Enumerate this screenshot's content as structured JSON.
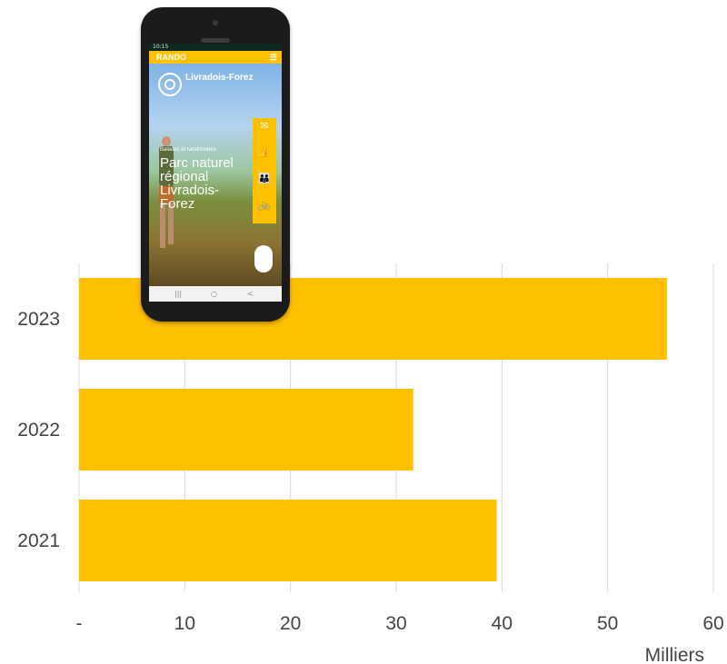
{
  "chart_data": {
    "type": "bar",
    "orientation": "horizontal",
    "categories": [
      "2023",
      "2022",
      "2021"
    ],
    "values": [
      55.6,
      31.6,
      39.5
    ],
    "xlim": [
      0,
      60
    ],
    "xticks": [
      0,
      10,
      20,
      30,
      40,
      50,
      60
    ],
    "xtick_labels": [
      "-",
      "10",
      "20",
      "30",
      "40",
      "50",
      "60"
    ],
    "unit_label": "Milliers",
    "grid": "vertical",
    "bar_color": "#FFC000",
    "grid_color": "#D9D9D9",
    "text_color": "#444444"
  },
  "phone": {
    "status_time": "10:15",
    "app_title": "RANDO",
    "menu_icon": "menu-icon",
    "brand_name": "Livradois-Forez",
    "tagline": "Balades et randonnées",
    "park_title": "Parc naturel régional Livradois-Forez",
    "side_items": [
      {
        "icon": "envelope-icon",
        "glyph": "✉"
      },
      {
        "icon": "thumbs-up-icon",
        "glyph": "👍"
      },
      {
        "icon": "family-icon",
        "glyph": "👪"
      },
      {
        "icon": "bicycle-icon",
        "glyph": "🚲"
      }
    ],
    "nav": [
      "|||",
      "○",
      "<"
    ],
    "accent": "#FFC000"
  }
}
